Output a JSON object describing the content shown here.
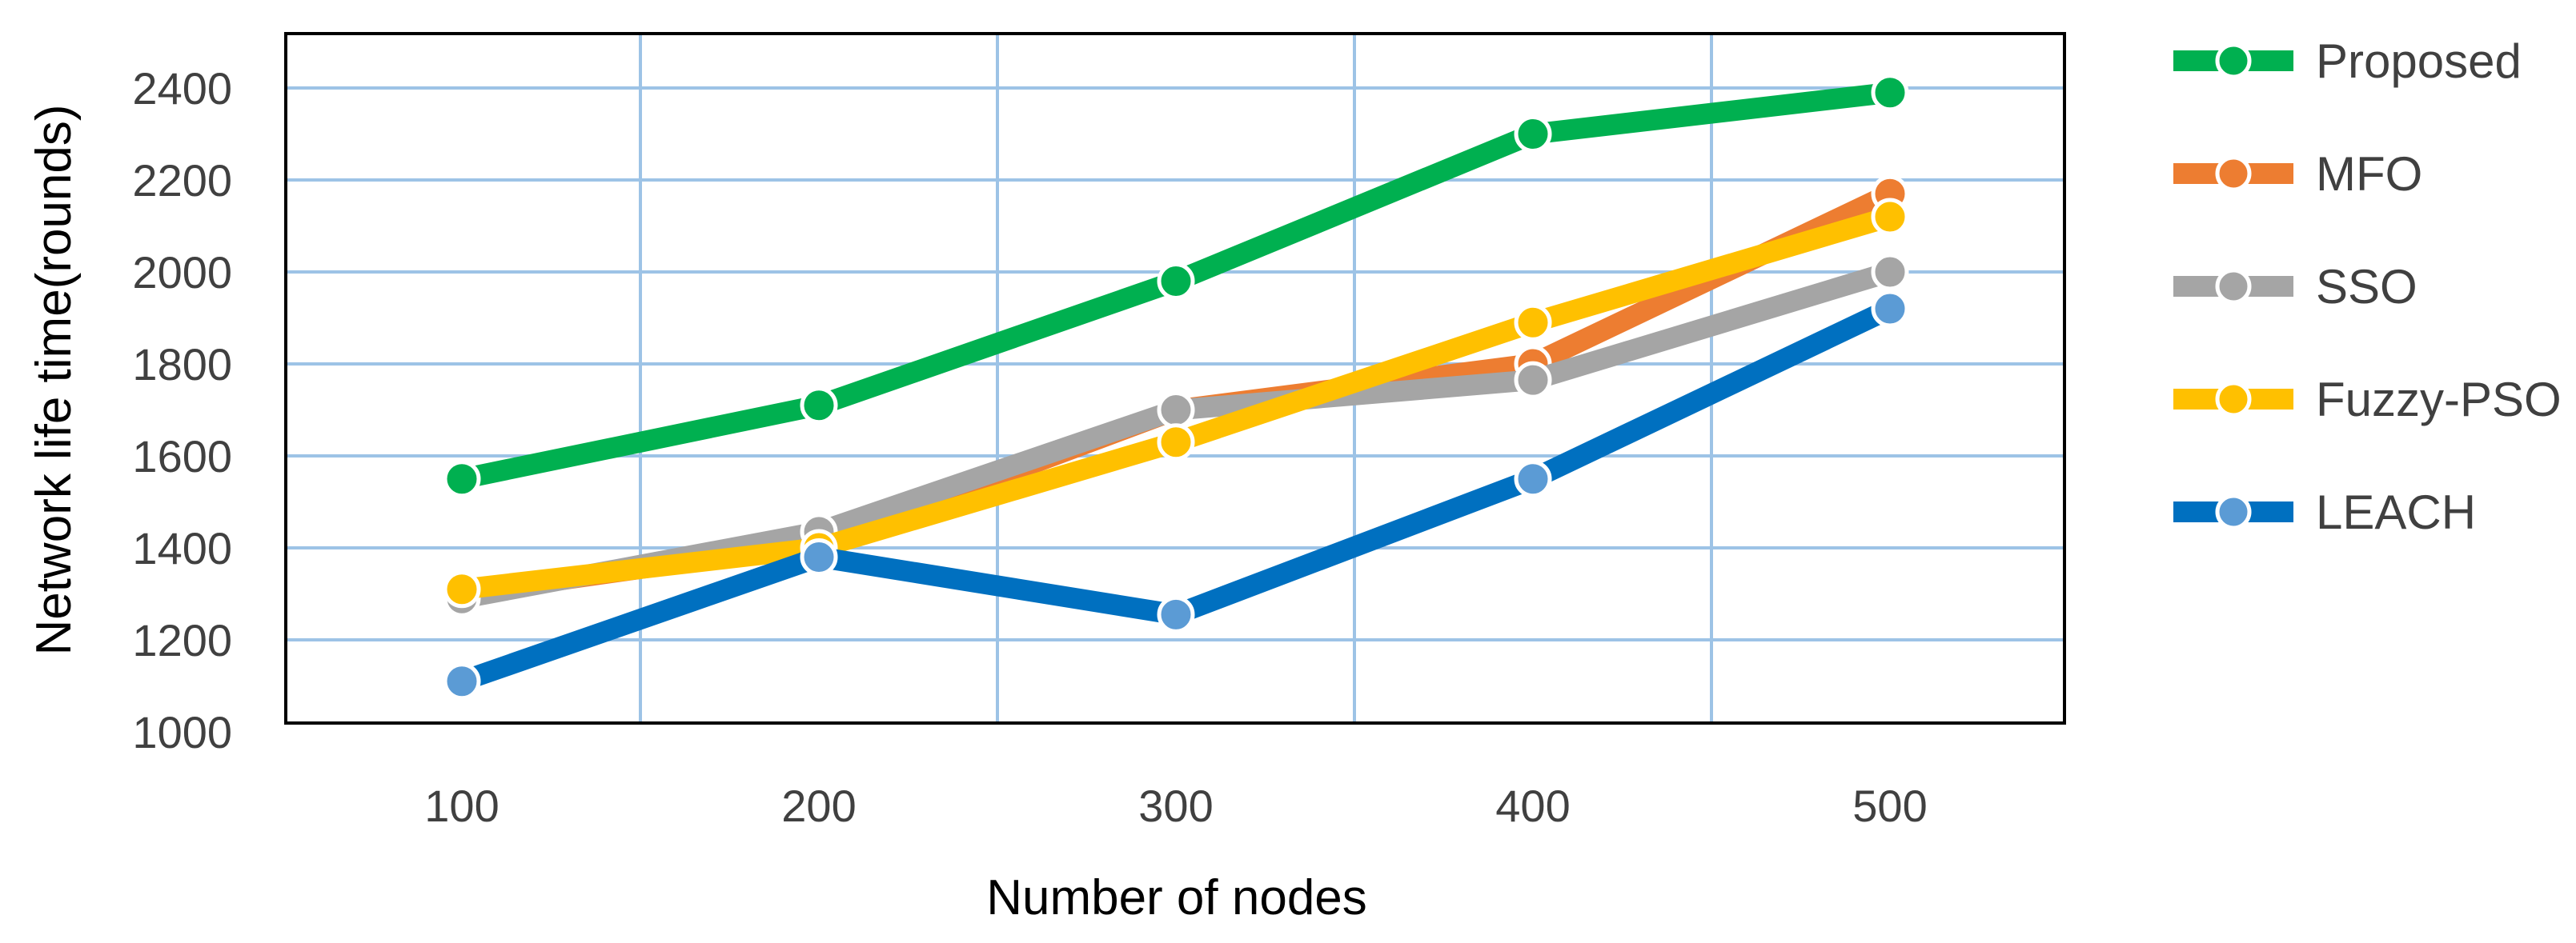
{
  "chart_data": {
    "type": "line",
    "title": "",
    "xlabel": "Number of nodes",
    "ylabel": "Network life time(rounds)",
    "categories": [
      "100",
      "200",
      "300",
      "400",
      "500"
    ],
    "ylim": [
      1000,
      2400
    ],
    "yticks": [
      1000,
      1200,
      1400,
      1600,
      1800,
      2000,
      2200,
      2400
    ],
    "grid": true,
    "legend_position": "right",
    "series": [
      {
        "name": "Proposed",
        "color": "#00b050",
        "marker_color": "#00b050",
        "values": [
          1550,
          1710,
          1980,
          2300,
          2390
        ]
      },
      {
        "name": "MFO",
        "color": "#ed7d31",
        "marker_color": "#ed7d31",
        "values": [
          1300,
          1410,
          1700,
          1800,
          2170
        ]
      },
      {
        "name": "SSO",
        "color": "#a5a5a5",
        "marker_color": "#a5a5a5",
        "values": [
          1290,
          1435,
          1700,
          1765,
          2000
        ]
      },
      {
        "name": "Fuzzy-PSO",
        "color": "#ffc000",
        "marker_color": "#ffc000",
        "values": [
          1310,
          1400,
          1630,
          1890,
          2120
        ]
      },
      {
        "name": "LEACH",
        "color": "#0070c0",
        "marker_color": "#5b9bd5",
        "values": [
          1110,
          1380,
          1255,
          1550,
          1920
        ]
      }
    ]
  }
}
